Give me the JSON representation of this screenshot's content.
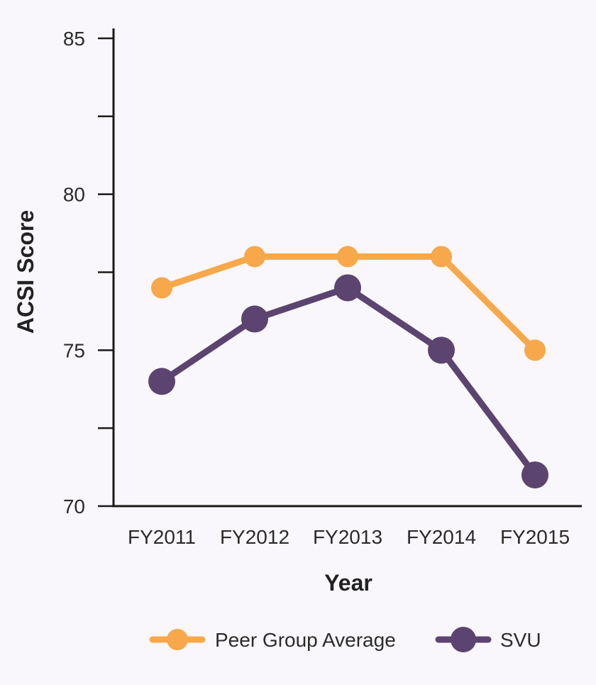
{
  "chart_data": {
    "type": "line",
    "title": "",
    "xlabel": "Year",
    "ylabel": "ACSI Score",
    "categories": [
      "FY2011",
      "FY2012",
      "FY2013",
      "FY2014",
      "FY2015"
    ],
    "ylim": [
      70,
      85
    ],
    "yticks": [
      70,
      72.5,
      75,
      77.5,
      80,
      82.5,
      85
    ],
    "ytick_labels": [
      "70",
      "",
      "75",
      "",
      "80",
      "",
      "85"
    ],
    "grid": false,
    "legend_position": "bottom",
    "series": [
      {
        "name": "Peer Group Average",
        "color": "#f7a84a",
        "values": [
          77,
          78,
          78,
          78,
          75
        ]
      },
      {
        "name": "SVU",
        "color": "#5b4470",
        "values": [
          74,
          76,
          77,
          75,
          71
        ]
      }
    ]
  }
}
